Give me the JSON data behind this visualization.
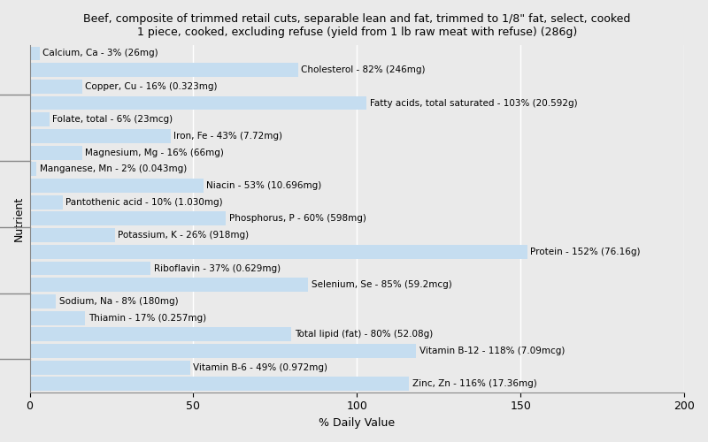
{
  "title": "Beef, composite of trimmed retail cuts, separable lean and fat, trimmed to 1/8\" fat, select, cooked\n1 piece, cooked, excluding refuse (yield from 1 lb raw meat with refuse) (286g)",
  "xlabel": "% Daily Value",
  "ylabel": "Nutrient",
  "xlim": [
    0,
    200
  ],
  "xticks": [
    0,
    50,
    100,
    150,
    200
  ],
  "bar_color": "#c5ddf0",
  "background_color": "#eaeaea",
  "nutrients": [
    {
      "label": "Calcium, Ca - 3% (26mg)",
      "value": 3
    },
    {
      "label": "Cholesterol - 82% (246mg)",
      "value": 82
    },
    {
      "label": "Copper, Cu - 16% (0.323mg)",
      "value": 16
    },
    {
      "label": "Fatty acids, total saturated - 103% (20.592g)",
      "value": 103
    },
    {
      "label": "Folate, total - 6% (23mcg)",
      "value": 6
    },
    {
      "label": "Iron, Fe - 43% (7.72mg)",
      "value": 43
    },
    {
      "label": "Magnesium, Mg - 16% (66mg)",
      "value": 16
    },
    {
      "label": "Manganese, Mn - 2% (0.043mg)",
      "value": 2
    },
    {
      "label": "Niacin - 53% (10.696mg)",
      "value": 53
    },
    {
      "label": "Pantothenic acid - 10% (1.030mg)",
      "value": 10
    },
    {
      "label": "Phosphorus, P - 60% (598mg)",
      "value": 60
    },
    {
      "label": "Potassium, K - 26% (918mg)",
      "value": 26
    },
    {
      "label": "Protein - 152% (76.16g)",
      "value": 152
    },
    {
      "label": "Riboflavin - 37% (0.629mg)",
      "value": 37
    },
    {
      "label": "Selenium, Se - 85% (59.2mcg)",
      "value": 85
    },
    {
      "label": "Sodium, Na - 8% (180mg)",
      "value": 8
    },
    {
      "label": "Thiamin - 17% (0.257mg)",
      "value": 17
    },
    {
      "label": "Total lipid (fat) - 80% (52.08g)",
      "value": 80
    },
    {
      "label": "Vitamin B-12 - 118% (7.09mcg)",
      "value": 118
    },
    {
      "label": "Vitamin B-6 - 49% (0.972mg)",
      "value": 49
    },
    {
      "label": "Zinc, Zn - 116% (17.36mg)",
      "value": 116
    }
  ],
  "label_fontsize": 7.5,
  "title_fontsize": 9,
  "axis_label_fontsize": 9
}
